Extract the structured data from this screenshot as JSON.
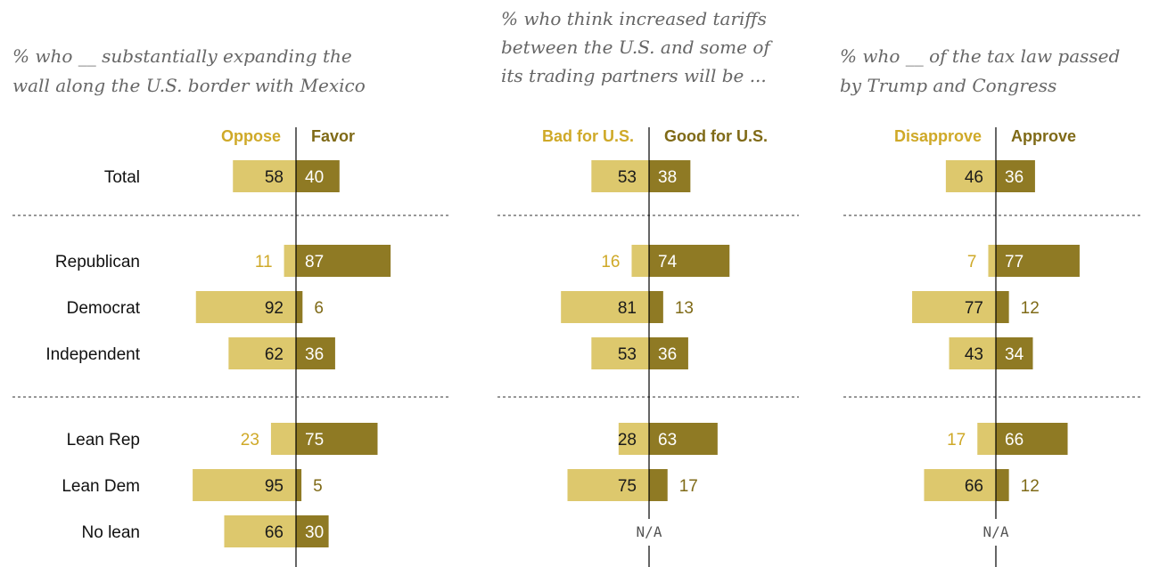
{
  "colors": {
    "oppose": "#DDC86D",
    "favor": "#8F7A24",
    "oppose_text": "#CFA928",
    "favor_text": "#7F6A17",
    "inside_text_dark": "#1a1a1a",
    "inside_text_light": "#ffffff",
    "divider": "#777777",
    "axis": "#000000"
  },
  "row_labels": [
    "Total",
    "Republican",
    "Democrat",
    "Independent",
    "Lean Rep",
    "Lean Dem",
    "No lean"
  ],
  "chart_data": [
    {
      "type": "bar",
      "title": "% who __ substantially expanding the wall along the U.S. border with Mexico",
      "title_lines": [
        "% who __ substantially expanding the",
        "wall along the U.S. border with Mexico"
      ],
      "categories": [
        "Total",
        "Republican",
        "Democrat",
        "Independent",
        "Lean Rep",
        "Lean Dem",
        "No lean"
      ],
      "series": [
        {
          "name": "Oppose",
          "values": [
            58,
            11,
            92,
            62,
            23,
            95,
            66
          ]
        },
        {
          "name": "Favor",
          "values": [
            40,
            87,
            6,
            36,
            75,
            5,
            30
          ]
        }
      ],
      "na_label": ""
    },
    {
      "type": "bar",
      "title": "% who think increased tariffs between the U.S. and some of its trading partners will be ...",
      "title_lines": [
        "% who think increased tariffs",
        "between the U.S. and some of",
        "its trading partners will be ..."
      ],
      "categories": [
        "Total",
        "Republican",
        "Democrat",
        "Independent",
        "Lean Rep",
        "Lean Dem",
        "No lean"
      ],
      "series": [
        {
          "name": "Bad for U.S.",
          "values": [
            53,
            16,
            81,
            53,
            28,
            75,
            null
          ]
        },
        {
          "name": "Good for U.S.",
          "values": [
            38,
            74,
            13,
            36,
            63,
            17,
            null
          ]
        }
      ],
      "na_label": "N/A"
    },
    {
      "type": "bar",
      "title": "% who __ of the tax law passed by Trump and Congress",
      "title_lines": [
        "% who __ of the tax law passed",
        "by Trump and Congress"
      ],
      "categories": [
        "Total",
        "Republican",
        "Democrat",
        "Independent",
        "Lean Rep",
        "Lean Dem",
        "No lean"
      ],
      "series": [
        {
          "name": "Disapprove",
          "values": [
            46,
            7,
            77,
            43,
            17,
            66,
            null
          ]
        },
        {
          "name": "Approve",
          "values": [
            36,
            77,
            12,
            34,
            66,
            12,
            null
          ]
        }
      ],
      "na_label": "N/A"
    }
  ]
}
